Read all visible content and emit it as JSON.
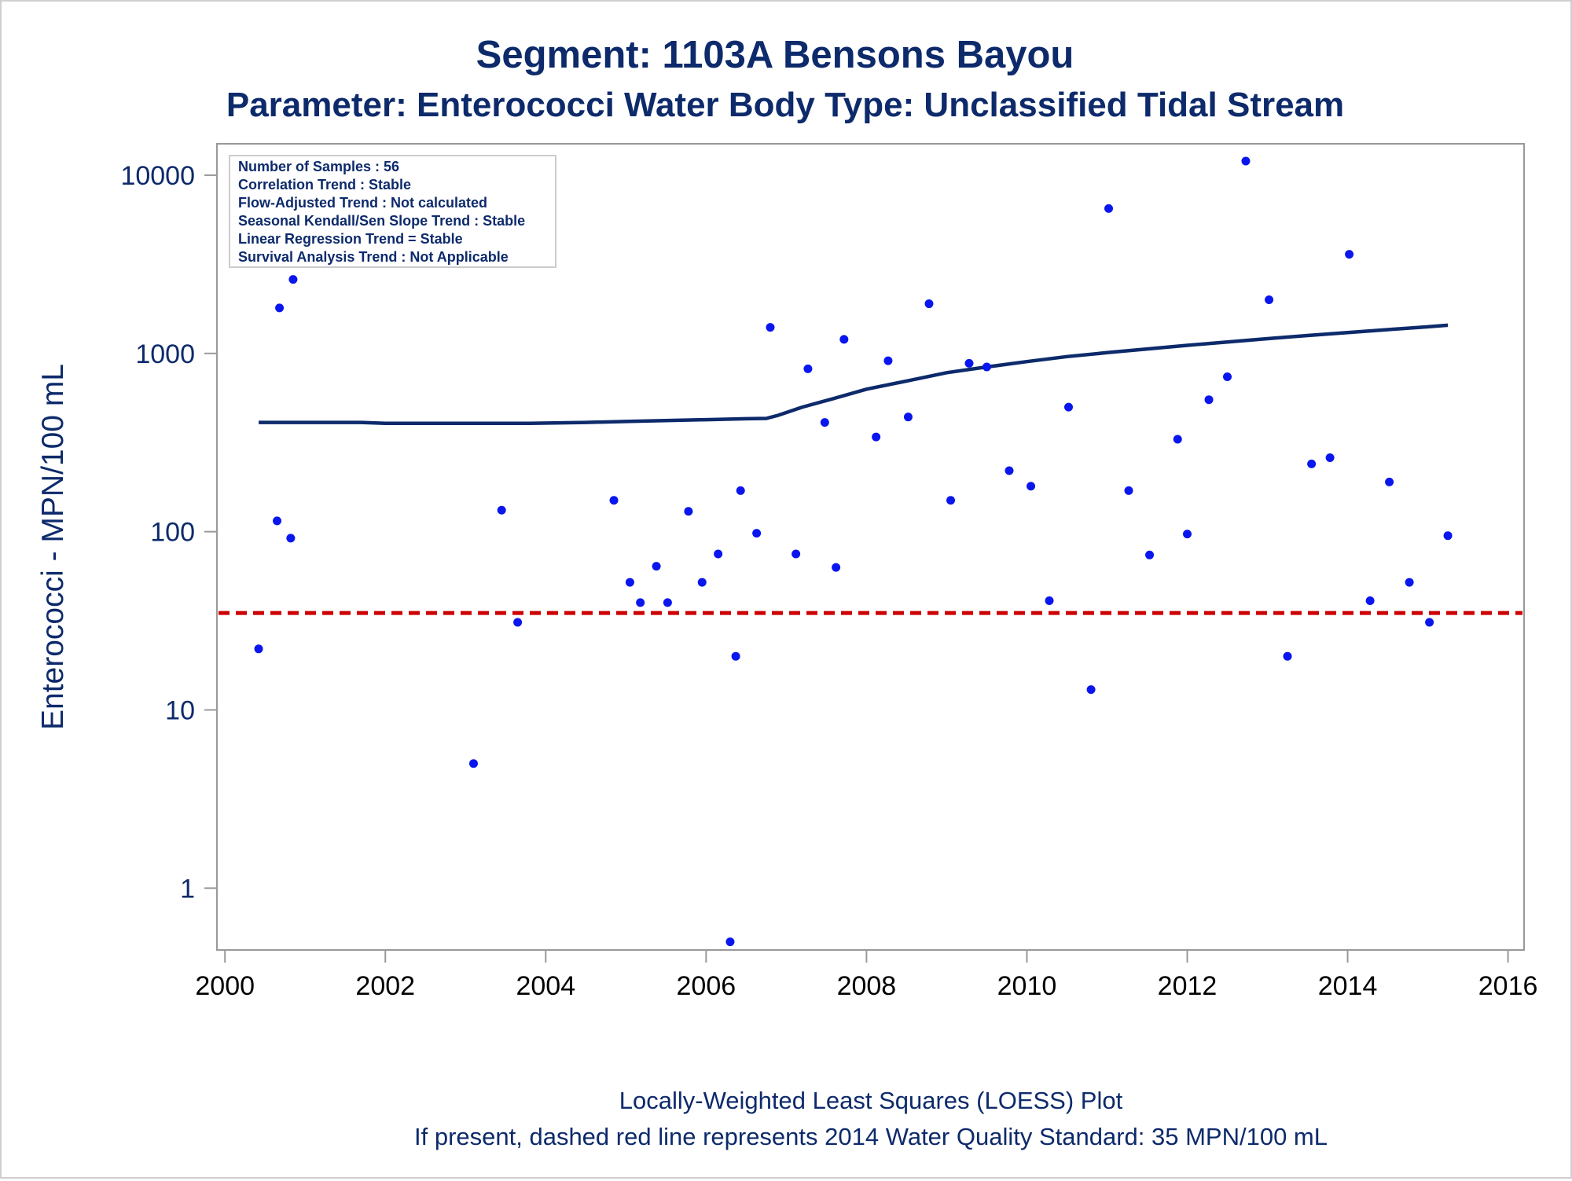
{
  "chart_data": {
    "type": "scatter",
    "title": "Segment: 1103A  Bensons Bayou",
    "subtitle": "Parameter: Enterococci   Water Body Type: Unclassified Tidal Stream",
    "ylabel": "Enterococci - MPN/100 mL",
    "xlabel": "",
    "footnotes": [
      "Locally-Weighted Least Squares (LOESS) Plot",
      "If present, dashed red line represents 2014 Water Quality Standard: 35 MPN/100 mL"
    ],
    "stats_box": [
      "Number of Samples : 56",
      "Correlation Trend : Stable",
      "Flow-Adjusted Trend : Not calculated",
      "Seasonal Kendall/Sen Slope Trend : Stable",
      "Linear Regression Trend = Stable",
      "Survival Analysis Trend : Not Applicable"
    ],
    "y_scale": "log",
    "xlim": [
      1999.9,
      2016.2
    ],
    "ylim": [
      0.45,
      15000
    ],
    "x_ticks": [
      2000,
      2002,
      2004,
      2006,
      2008,
      2010,
      2012,
      2014,
      2016
    ],
    "x_tick_labels": [
      "2000",
      "2002",
      "2004",
      "2006",
      "2008",
      "2010",
      "2012",
      "2014",
      "2016"
    ],
    "y_ticks": [
      1,
      10,
      100,
      1000,
      10000
    ],
    "y_tick_labels": [
      "1",
      "10",
      "100",
      "1000",
      "10000"
    ],
    "grid": false,
    "legend": "none",
    "colors": {
      "points": "#0a16ee",
      "loess": "#0d2a6b",
      "standard": "#cc0000",
      "text": "#0d2a6b",
      "axis": "#999999"
    },
    "standard_line": {
      "value": 35,
      "style": "dashed"
    },
    "points": [
      {
        "x": 2000.42,
        "y": 22
      },
      {
        "x": 2000.65,
        "y": 115
      },
      {
        "x": 2000.68,
        "y": 1800
      },
      {
        "x": 2000.82,
        "y": 92
      },
      {
        "x": 2000.85,
        "y": 2600
      },
      {
        "x": 2003.1,
        "y": 5
      },
      {
        "x": 2003.45,
        "y": 132
      },
      {
        "x": 2003.65,
        "y": 31
      },
      {
        "x": 2004.85,
        "y": 150
      },
      {
        "x": 2005.05,
        "y": 52
      },
      {
        "x": 2005.18,
        "y": 40
      },
      {
        "x": 2005.38,
        "y": 64
      },
      {
        "x": 2005.52,
        "y": 40
      },
      {
        "x": 2005.78,
        "y": 130
      },
      {
        "x": 2005.95,
        "y": 52
      },
      {
        "x": 2006.15,
        "y": 75
      },
      {
        "x": 2006.3,
        "y": 0.5
      },
      {
        "x": 2006.37,
        "y": 20
      },
      {
        "x": 2006.43,
        "y": 170
      },
      {
        "x": 2006.63,
        "y": 98
      },
      {
        "x": 2006.8,
        "y": 1400
      },
      {
        "x": 2007.12,
        "y": 75
      },
      {
        "x": 2007.27,
        "y": 820
      },
      {
        "x": 2007.48,
        "y": 410
      },
      {
        "x": 2007.62,
        "y": 63
      },
      {
        "x": 2007.72,
        "y": 1200
      },
      {
        "x": 2008.12,
        "y": 340
      },
      {
        "x": 2008.27,
        "y": 910
      },
      {
        "x": 2008.52,
        "y": 440
      },
      {
        "x": 2008.78,
        "y": 1900
      },
      {
        "x": 2009.05,
        "y": 150
      },
      {
        "x": 2009.28,
        "y": 880
      },
      {
        "x": 2009.5,
        "y": 840
      },
      {
        "x": 2009.78,
        "y": 220
      },
      {
        "x": 2010.05,
        "y": 180
      },
      {
        "x": 2010.28,
        "y": 41
      },
      {
        "x": 2010.52,
        "y": 500
      },
      {
        "x": 2010.8,
        "y": 13
      },
      {
        "x": 2011.02,
        "y": 6500
      },
      {
        "x": 2011.27,
        "y": 170
      },
      {
        "x": 2011.53,
        "y": 74
      },
      {
        "x": 2011.88,
        "y": 330
      },
      {
        "x": 2012.0,
        "y": 97
      },
      {
        "x": 2012.27,
        "y": 550
      },
      {
        "x": 2012.5,
        "y": 740
      },
      {
        "x": 2012.73,
        "y": 12000
      },
      {
        "x": 2013.02,
        "y": 2000
      },
      {
        "x": 2013.25,
        "y": 20
      },
      {
        "x": 2013.55,
        "y": 240
      },
      {
        "x": 2013.78,
        "y": 260
      },
      {
        "x": 2014.02,
        "y": 3600
      },
      {
        "x": 2014.28,
        "y": 41
      },
      {
        "x": 2014.52,
        "y": 190
      },
      {
        "x": 2014.77,
        "y": 52
      },
      {
        "x": 2015.02,
        "y": 31
      },
      {
        "x": 2015.25,
        "y": 95
      }
    ],
    "loess": [
      {
        "x": 2000.42,
        "y": 410
      },
      {
        "x": 2001.0,
        "y": 410
      },
      {
        "x": 2001.7,
        "y": 410
      },
      {
        "x": 2002.0,
        "y": 405
      },
      {
        "x": 2003.0,
        "y": 405
      },
      {
        "x": 2003.8,
        "y": 405
      },
      {
        "x": 2004.5,
        "y": 410
      },
      {
        "x": 2005.0,
        "y": 415
      },
      {
        "x": 2006.0,
        "y": 425
      },
      {
        "x": 2006.5,
        "y": 430
      },
      {
        "x": 2006.75,
        "y": 432
      },
      {
        "x": 2006.9,
        "y": 450
      },
      {
        "x": 2007.2,
        "y": 500
      },
      {
        "x": 2007.6,
        "y": 560
      },
      {
        "x": 2008.0,
        "y": 630
      },
      {
        "x": 2008.5,
        "y": 700
      },
      {
        "x": 2009.0,
        "y": 780
      },
      {
        "x": 2009.5,
        "y": 840
      },
      {
        "x": 2010.0,
        "y": 900
      },
      {
        "x": 2010.5,
        "y": 960
      },
      {
        "x": 2011.0,
        "y": 1010
      },
      {
        "x": 2011.5,
        "y": 1060
      },
      {
        "x": 2012.0,
        "y": 1110
      },
      {
        "x": 2012.5,
        "y": 1160
      },
      {
        "x": 2013.0,
        "y": 1210
      },
      {
        "x": 2013.5,
        "y": 1260
      },
      {
        "x": 2014.0,
        "y": 1310
      },
      {
        "x": 2014.5,
        "y": 1360
      },
      {
        "x": 2015.0,
        "y": 1410
      },
      {
        "x": 2015.25,
        "y": 1440
      }
    ]
  }
}
